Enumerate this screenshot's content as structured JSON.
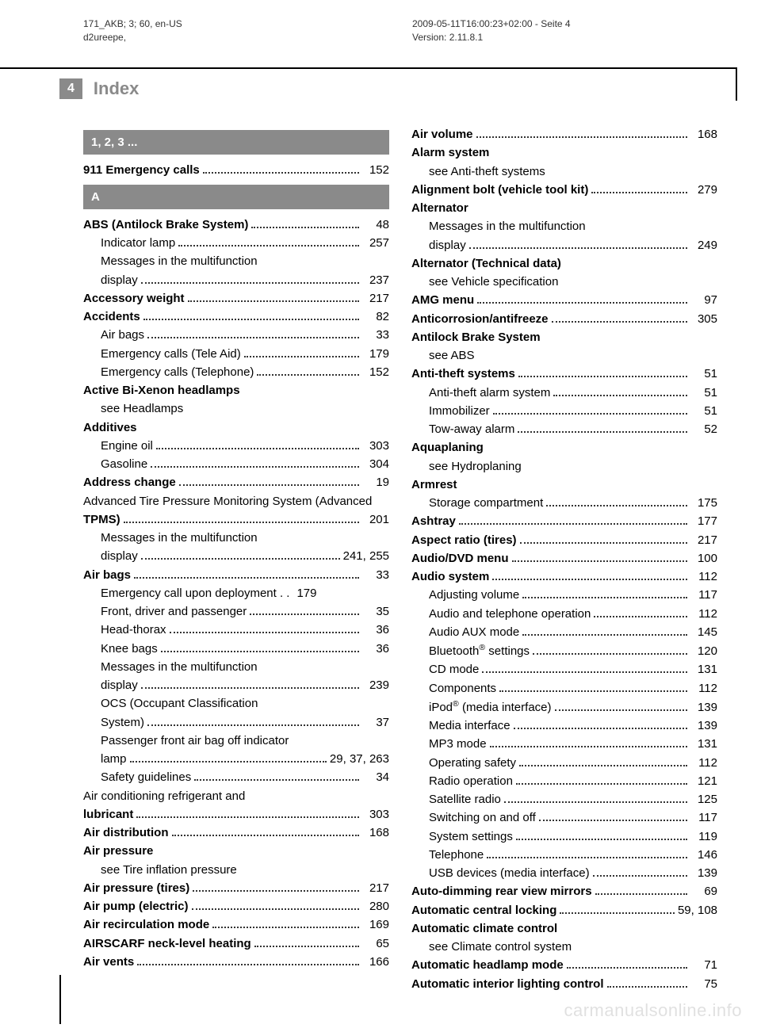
{
  "meta": {
    "left_line1": "171_AKB; 3; 60, en-US",
    "left_line2": "d2ureepe,",
    "right_line1": "2009-05-11T16:00:23+02:00 - Seite 4",
    "right_line2": "Version: 2.11.8.1"
  },
  "page_number": "4",
  "page_title": "Index",
  "section_123": "1, 2, 3 ...",
  "section_A": "A",
  "watermark": "carmanualsonline.info",
  "left": [
    {
      "t": "header",
      "text": "1, 2, 3 ..."
    },
    {
      "t": "row",
      "bold": "911 Emergency calls",
      "text": "",
      "page": "152"
    },
    {
      "t": "header",
      "text": "A"
    },
    {
      "t": "row",
      "bold": "ABS (Antilock Brake System)",
      "text": "",
      "page": "48"
    },
    {
      "t": "row",
      "indent": true,
      "text": "Indicator lamp",
      "page": "257"
    },
    {
      "t": "row",
      "indent": true,
      "text": "Messages in the multifunction display",
      "page": "237",
      "wrap": true
    },
    {
      "t": "row",
      "bold": "Accessory weight",
      "text": "",
      "page": "217"
    },
    {
      "t": "row",
      "bold": "Accidents",
      "text": "",
      "page": "82"
    },
    {
      "t": "row",
      "indent": true,
      "text": "Air bags",
      "page": "33"
    },
    {
      "t": "row",
      "indent": true,
      "text": "Emergency calls (Tele Aid)",
      "page": "179"
    },
    {
      "t": "row",
      "indent": true,
      "text": "Emergency calls (Telephone)",
      "page": "152"
    },
    {
      "t": "plain",
      "bold": "Active Bi-Xenon headlamps"
    },
    {
      "t": "plain",
      "indent": true,
      "text": "see Headlamps"
    },
    {
      "t": "plain",
      "bold": "Additives"
    },
    {
      "t": "row",
      "indent": true,
      "text": "Engine oil",
      "page": "303"
    },
    {
      "t": "row",
      "indent": true,
      "text": "Gasoline",
      "page": "304"
    },
    {
      "t": "row",
      "bold": "Address change",
      "text": "",
      "page": "19"
    },
    {
      "t": "row",
      "bold": "Advanced Tire Pressure Monitoring System (Advanced TPMS)",
      "text": "",
      "page": "201",
      "wrap": true
    },
    {
      "t": "row",
      "indent": true,
      "text": "Messages in the multifunction display",
      "page": "241, 255",
      "wrap": true
    },
    {
      "t": "row",
      "bold": "Air bags",
      "text": "",
      "page": "33"
    },
    {
      "t": "row",
      "indent": true,
      "text": "Emergency call upon deployment",
      "page": "179",
      "tight": true
    },
    {
      "t": "row",
      "indent": true,
      "text": "Front, driver and passenger",
      "page": "35"
    },
    {
      "t": "row",
      "indent": true,
      "text": "Head-thorax",
      "page": "36"
    },
    {
      "t": "row",
      "indent": true,
      "text": "Knee bags",
      "page": "36"
    },
    {
      "t": "row",
      "indent": true,
      "text": "Messages in the multifunction display",
      "page": "239",
      "wrap": true
    },
    {
      "t": "row",
      "indent": true,
      "text": "OCS (Occupant Classification System)",
      "page": "37",
      "wrap": true
    },
    {
      "t": "row",
      "indent": true,
      "text": "Passenger front air bag off indicator lamp",
      "page": "29, 37, 263",
      "wrap": true
    },
    {
      "t": "row",
      "indent": true,
      "text": "Safety guidelines",
      "page": "34"
    },
    {
      "t": "row",
      "bold": "Air conditioning refrigerant and lubricant",
      "text": "",
      "page": "303",
      "wrap": true
    },
    {
      "t": "row",
      "bold": "Air distribution",
      "text": "",
      "page": "168"
    },
    {
      "t": "plain",
      "bold": "Air pressure"
    },
    {
      "t": "plain",
      "indent": true,
      "text": "see Tire inflation pressure"
    },
    {
      "t": "row",
      "bold": "Air pressure (tires)",
      "text": "",
      "page": "217"
    },
    {
      "t": "row",
      "bold": "Air pump (electric)",
      "text": "",
      "page": "280"
    },
    {
      "t": "row",
      "bold": "Air recirculation mode",
      "text": "",
      "page": "169"
    },
    {
      "t": "row",
      "bold": "AIRSCARF neck-level heating",
      "text": "",
      "page": "65"
    },
    {
      "t": "row",
      "bold": "Air vents",
      "text": "",
      "page": "166"
    }
  ],
  "right": [
    {
      "t": "row",
      "bold": "Air volume",
      "text": "",
      "page": "168"
    },
    {
      "t": "plain",
      "bold": "Alarm system"
    },
    {
      "t": "plain",
      "indent": true,
      "text": "see Anti-theft systems"
    },
    {
      "t": "row",
      "bold": "Alignment bolt (vehicle tool kit)",
      "text": "",
      "page": "279"
    },
    {
      "t": "plain",
      "bold": "Alternator"
    },
    {
      "t": "row",
      "indent": true,
      "text": "Messages in the multifunction display",
      "page": "249",
      "wrap": true
    },
    {
      "t": "plain",
      "bold": "Alternator (Technical data)"
    },
    {
      "t": "plain",
      "indent": true,
      "text": "see Vehicle specification"
    },
    {
      "t": "row",
      "bold": "AMG menu",
      "text": "",
      "page": "97"
    },
    {
      "t": "row",
      "bold": "Anticorrosion/antifreeze",
      "text": "",
      "page": "305"
    },
    {
      "t": "plain",
      "bold": "Antilock Brake System"
    },
    {
      "t": "plain",
      "indent": true,
      "text": "see ABS"
    },
    {
      "t": "row",
      "bold": "Anti-theft systems",
      "text": "",
      "page": "51"
    },
    {
      "t": "row",
      "indent": true,
      "text": "Anti-theft alarm system",
      "page": "51"
    },
    {
      "t": "row",
      "indent": true,
      "text": "Immobilizer",
      "page": "51"
    },
    {
      "t": "row",
      "indent": true,
      "text": "Tow-away alarm",
      "page": "52"
    },
    {
      "t": "plain",
      "bold": "Aquaplaning"
    },
    {
      "t": "plain",
      "indent": true,
      "text": "see Hydroplaning"
    },
    {
      "t": "plain",
      "bold": "Armrest"
    },
    {
      "t": "row",
      "indent": true,
      "text": "Storage compartment",
      "page": "175"
    },
    {
      "t": "row",
      "bold": "Ashtray",
      "text": "",
      "page": "177"
    },
    {
      "t": "row",
      "bold": "Aspect ratio (tires)",
      "text": "",
      "page": "217"
    },
    {
      "t": "row",
      "bold": "Audio/DVD menu",
      "text": "",
      "page": "100"
    },
    {
      "t": "row",
      "bold": "Audio system",
      "text": "",
      "page": "112"
    },
    {
      "t": "row",
      "indent": true,
      "text": "Adjusting volume",
      "page": "117"
    },
    {
      "t": "row",
      "indent": true,
      "text": "Audio and telephone operation",
      "page": "112"
    },
    {
      "t": "row",
      "indent": true,
      "text": "Audio AUX mode",
      "page": "145"
    },
    {
      "t": "row",
      "indent": true,
      "html": "Bluetooth<sup>®</sup> settings",
      "page": "120"
    },
    {
      "t": "row",
      "indent": true,
      "text": "CD mode",
      "page": "131"
    },
    {
      "t": "row",
      "indent": true,
      "text": "Components",
      "page": "112"
    },
    {
      "t": "row",
      "indent": true,
      "html": "iPod<sup>®</sup> (media interface)",
      "page": "139"
    },
    {
      "t": "row",
      "indent": true,
      "text": "Media interface",
      "page": "139"
    },
    {
      "t": "row",
      "indent": true,
      "text": "MP3 mode",
      "page": "131"
    },
    {
      "t": "row",
      "indent": true,
      "text": "Operating safety",
      "page": "112"
    },
    {
      "t": "row",
      "indent": true,
      "text": "Radio operation",
      "page": "121"
    },
    {
      "t": "row",
      "indent": true,
      "text": "Satellite radio",
      "page": "125"
    },
    {
      "t": "row",
      "indent": true,
      "text": "Switching on and off",
      "page": "117"
    },
    {
      "t": "row",
      "indent": true,
      "text": "System settings",
      "page": "119"
    },
    {
      "t": "row",
      "indent": true,
      "text": "Telephone",
      "page": "146"
    },
    {
      "t": "row",
      "indent": true,
      "text": "USB devices (media interface)",
      "page": "139"
    },
    {
      "t": "row",
      "bold": "Auto-dimming rear view mirrors",
      "text": "",
      "page": "69"
    },
    {
      "t": "row",
      "bold": "Automatic central locking",
      "text": "",
      "page": "59, 108"
    },
    {
      "t": "plain",
      "bold": "Automatic climate control"
    },
    {
      "t": "plain",
      "indent": true,
      "text": "see Climate control system"
    },
    {
      "t": "row",
      "bold": "Automatic headlamp mode",
      "text": "",
      "page": "71"
    },
    {
      "t": "row",
      "bold": "Automatic interior lighting control",
      "text": "",
      "page": "75"
    }
  ]
}
